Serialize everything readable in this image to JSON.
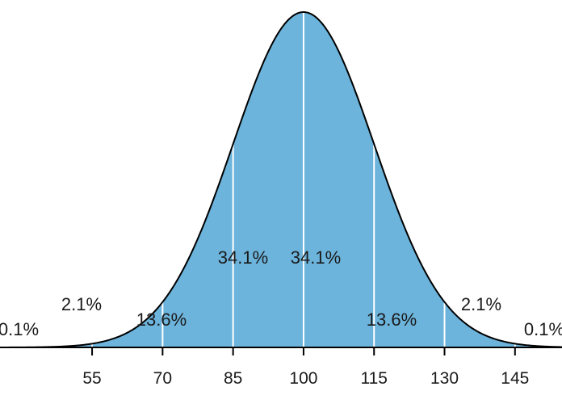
{
  "chart_data": {
    "type": "area",
    "distribution": "normal",
    "mean": 100,
    "sd": 15,
    "fill_color": "#6cb4dc",
    "stroke_color": "#000000",
    "divider_color": "#ffffff",
    "xlim": [
      35.4,
      155
    ],
    "ticks": [
      {
        "value": 55,
        "label": "55"
      },
      {
        "value": 70,
        "label": "70"
      },
      {
        "value": 85,
        "label": "85"
      },
      {
        "value": 100,
        "label": "100"
      },
      {
        "value": 115,
        "label": "115"
      },
      {
        "value": 130,
        "label": "130"
      },
      {
        "value": 145,
        "label": "145"
      }
    ],
    "dividers": [
      55,
      70,
      85,
      100,
      115,
      130,
      145
    ],
    "regions": [
      {
        "name": "region-below-55",
        "label": "0.1%",
        "range": [
          "-inf",
          55
        ]
      },
      {
        "name": "region-55-70",
        "label": "2.1%",
        "range": [
          55,
          70
        ]
      },
      {
        "name": "region-70-85",
        "label": "13.6%",
        "range": [
          70,
          85
        ]
      },
      {
        "name": "region-85-100",
        "label": "34.1%",
        "range": [
          85,
          100
        ]
      },
      {
        "name": "region-100-115",
        "label": "34.1%",
        "range": [
          100,
          115
        ]
      },
      {
        "name": "region-115-130",
        "label": "13.6%",
        "range": [
          115,
          130
        ]
      },
      {
        "name": "region-130-145",
        "label": "2.1%",
        "range": [
          130,
          145
        ]
      },
      {
        "name": "region-above-145",
        "label": "0.1%",
        "range": [
          145,
          "inf"
        ]
      }
    ],
    "title": "",
    "xlabel": "",
    "ylabel": ""
  }
}
